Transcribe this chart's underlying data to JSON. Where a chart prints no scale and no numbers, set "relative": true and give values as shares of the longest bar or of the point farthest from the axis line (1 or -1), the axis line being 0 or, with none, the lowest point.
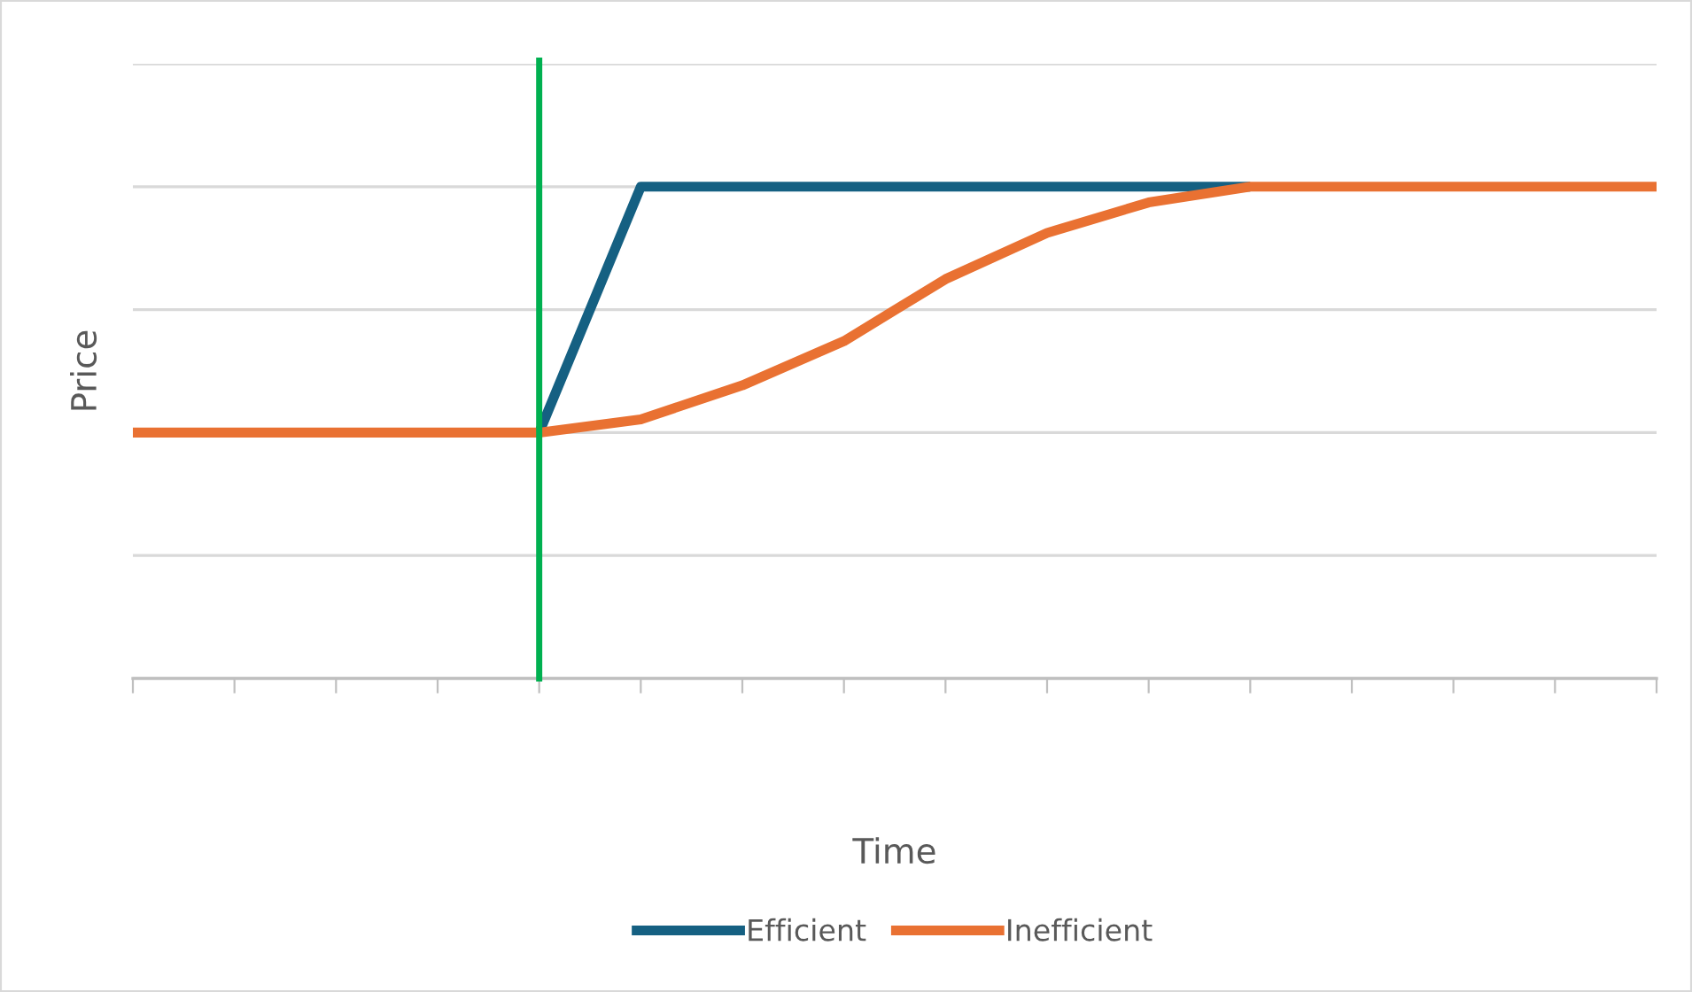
{
  "chart_data": {
    "type": "line",
    "xlabel": "Time",
    "ylabel": "Price",
    "relative": true,
    "categories": [
      null,
      null,
      null,
      null,
      null,
      null,
      null,
      null,
      null,
      null,
      null,
      null,
      null,
      null,
      null,
      null
    ],
    "series": [
      {
        "name": "Efficient",
        "color": "#156082",
        "values": [
          null,
          null,
          null,
          null,
          0.5,
          1,
          1,
          1,
          1,
          1,
          1,
          1,
          null,
          null,
          null,
          null
        ]
      },
      {
        "name": "Inefficient",
        "color": "#e97132",
        "values": [
          0.5,
          0.5,
          0.5,
          0.5,
          0.5,
          0.527,
          0.596,
          0.686,
          0.812,
          0.906,
          0.968,
          1,
          1,
          1,
          1,
          1
        ]
      }
    ],
    "grid": "y",
    "legend": "bottom",
    "marker": "none",
    "line_style": "solid"
  }
}
